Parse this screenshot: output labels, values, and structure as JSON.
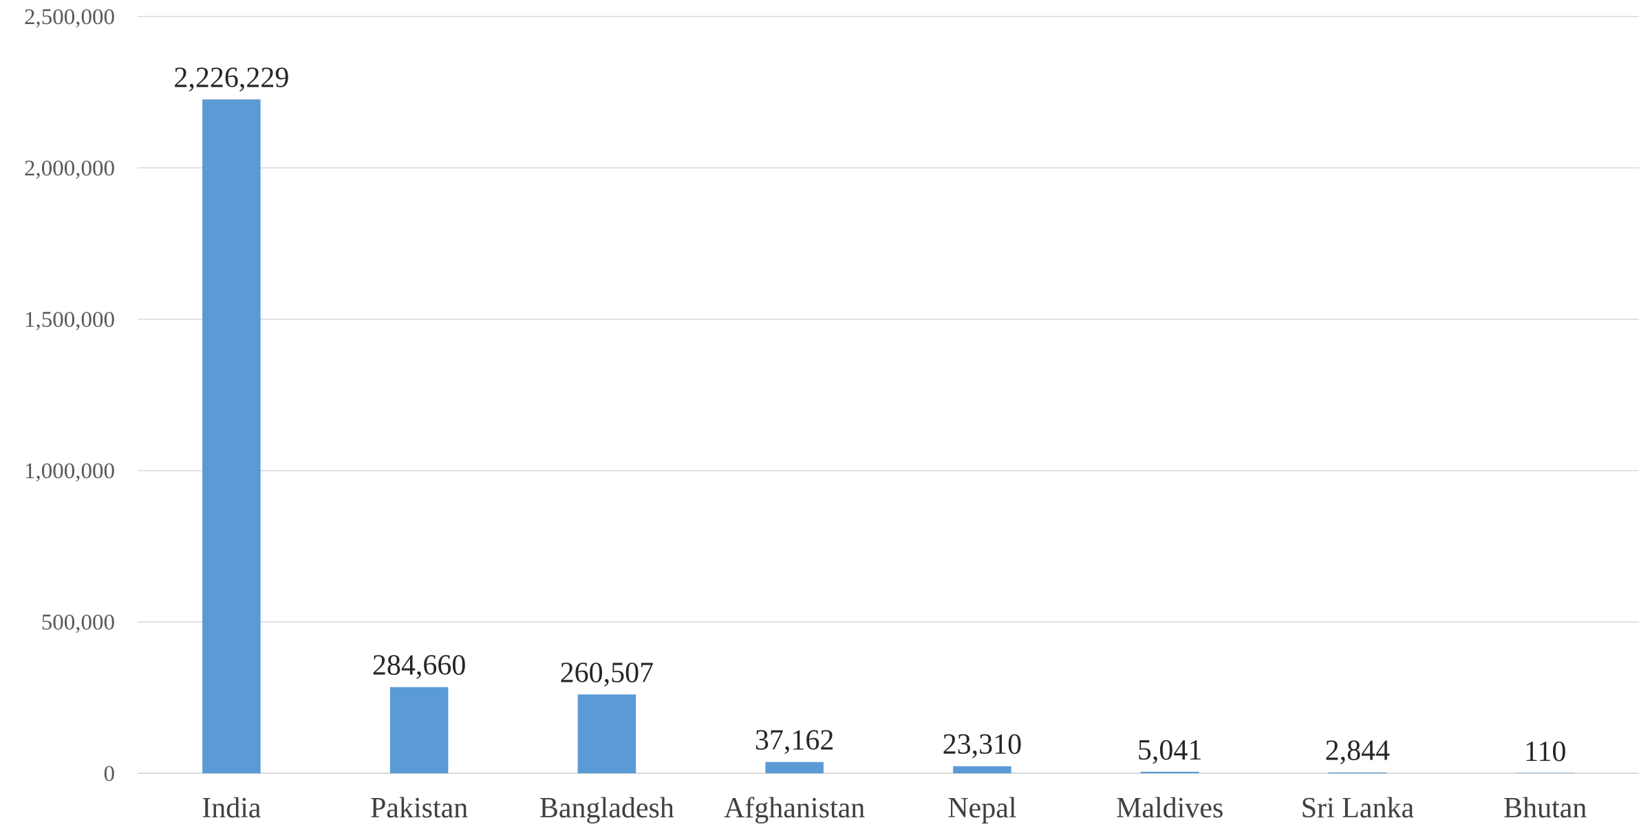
{
  "chart_data": {
    "type": "bar",
    "categories": [
      "India",
      "Pakistan",
      "Bangladesh",
      "Afghanistan",
      "Nepal",
      "Maldives",
      "Sri Lanka",
      "Bhutan"
    ],
    "values": [
      2226229,
      284660,
      260507,
      37162,
      23310,
      5041,
      2844,
      110
    ],
    "data_labels": [
      "2,226,229",
      "284,660",
      "260,507",
      "37,162",
      "23,310",
      "5,041",
      "2,844",
      "110"
    ],
    "title": "",
    "xlabel": "",
    "ylabel": "",
    "ylim": [
      0,
      2500000
    ],
    "yticks": [
      0,
      500000,
      1000000,
      1500000,
      2000000,
      2500000
    ],
    "ytick_labels": [
      "0",
      "500,000",
      "1,000,000",
      "1,500,000",
      "2,000,000",
      "2,500,000"
    ],
    "grid": true,
    "legend": "none",
    "colors": {
      "bar": "#5b9bd5",
      "grid": "#d9d9d9"
    }
  }
}
